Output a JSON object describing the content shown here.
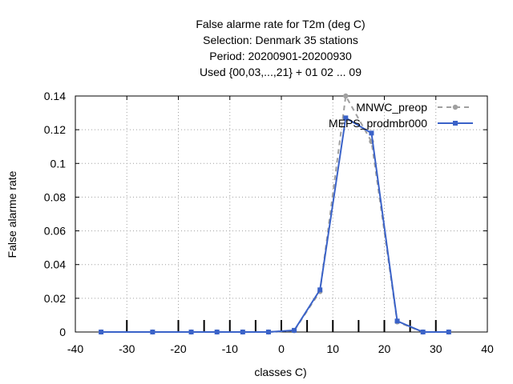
{
  "chart_data": {
    "type": "line",
    "title_lines": [
      "False alarme rate  for T2m (deg C)",
      "Selection: Denmark     35 stations",
      "Period: 20200901-20200930",
      "Used {00,03,...,21} + 01 02 ... 09"
    ],
    "xlabel": "classes C)",
    "ylabel": "False alarme rate",
    "xlim": [
      -40,
      40
    ],
    "ylim": [
      0,
      0.14
    ],
    "xticks": [
      "-40",
      "-30",
      "-20",
      "-10",
      "0",
      "10",
      "20",
      "30",
      "40"
    ],
    "yticks": [
      "0",
      "0.02",
      "0.04",
      "0.06",
      "0.08",
      "0.1",
      "0.12",
      "0.14"
    ],
    "grid": true,
    "legend_position": "top-right",
    "class_boundaries": [
      -30,
      -20,
      -15,
      -10,
      -5,
      0,
      5,
      10,
      15,
      20,
      25,
      30
    ],
    "series": [
      {
        "name": "MNWC_preop",
        "color": "#a0a0a0",
        "style": "dashed",
        "marker": "circle",
        "x": [
          -35,
          -25,
          -17.5,
          -12.5,
          -7.5,
          -2.5,
          2.5,
          7.5,
          12.5,
          17.5,
          22.5,
          27.5,
          32.5
        ],
        "values": [
          0,
          0,
          0,
          0,
          0,
          0,
          0.0008,
          0.024,
          0.14,
          0.113,
          0.006,
          0,
          0
        ]
      },
      {
        "name": "MEPS_prodmbr000",
        "color": "#3a62c8",
        "style": "solid",
        "marker": "square",
        "x": [
          -35,
          -25,
          -17.5,
          -12.5,
          -7.5,
          -2.5,
          2.5,
          7.5,
          12.5,
          17.5,
          22.5,
          27.5,
          32.5
        ],
        "values": [
          0,
          0,
          0,
          0,
          0,
          0,
          0.001,
          0.025,
          0.127,
          0.118,
          0.0065,
          0,
          0
        ]
      }
    ]
  }
}
